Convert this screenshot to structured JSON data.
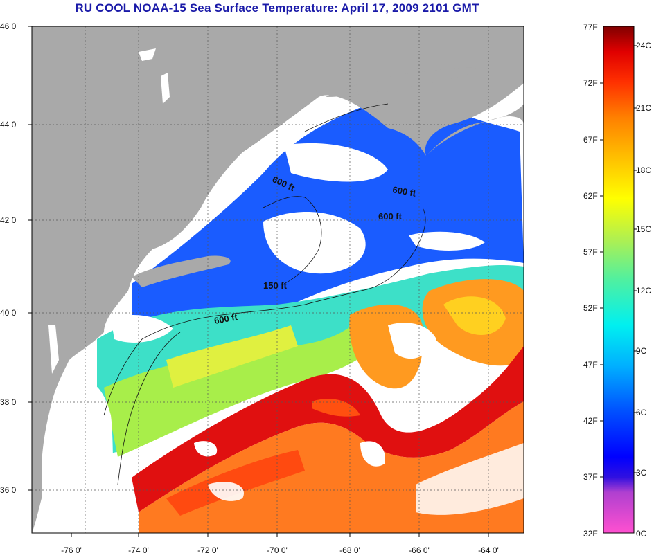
{
  "title": "RU COOL  NOAA-15  Sea Surface Temperature:  April 17, 2009 2101 GMT",
  "map": {
    "lat_labels": [
      "46 0'",
      "44 0'",
      "42 0'",
      "40 0'",
      "38 0'",
      "36 0'"
    ],
    "lon_labels": [
      "-76 0'",
      "-74 0'",
      "-72 0'",
      "-70 0'",
      "-68 0'",
      "-66 0'",
      "-64 0'"
    ],
    "isobaths": [
      "600 ft",
      "600 ft",
      "600 ft",
      "150 ft",
      "600 ft"
    ],
    "land_color": "#a9a9a9",
    "cloud_color": "#ffffff"
  },
  "colorbar": {
    "fahrenheit": [
      "77F",
      "72F",
      "67F",
      "62F",
      "57F",
      "52F",
      "47F",
      "42F",
      "37F",
      "32F"
    ],
    "celsius": [
      "24C",
      "21C",
      "18C",
      "15C",
      "12C",
      "9C",
      "6C",
      "3C",
      "0C"
    ],
    "colors": [
      "#ff40c0",
      "#c040c0",
      "#8040c0",
      "#0000e0",
      "#0060ff",
      "#00c0ff",
      "#00e0e0",
      "#40e0a0",
      "#a0f060",
      "#ffff00",
      "#ffc000",
      "#ff8000",
      "#ff4000",
      "#ff0000",
      "#d00000",
      "#800000"
    ]
  }
}
